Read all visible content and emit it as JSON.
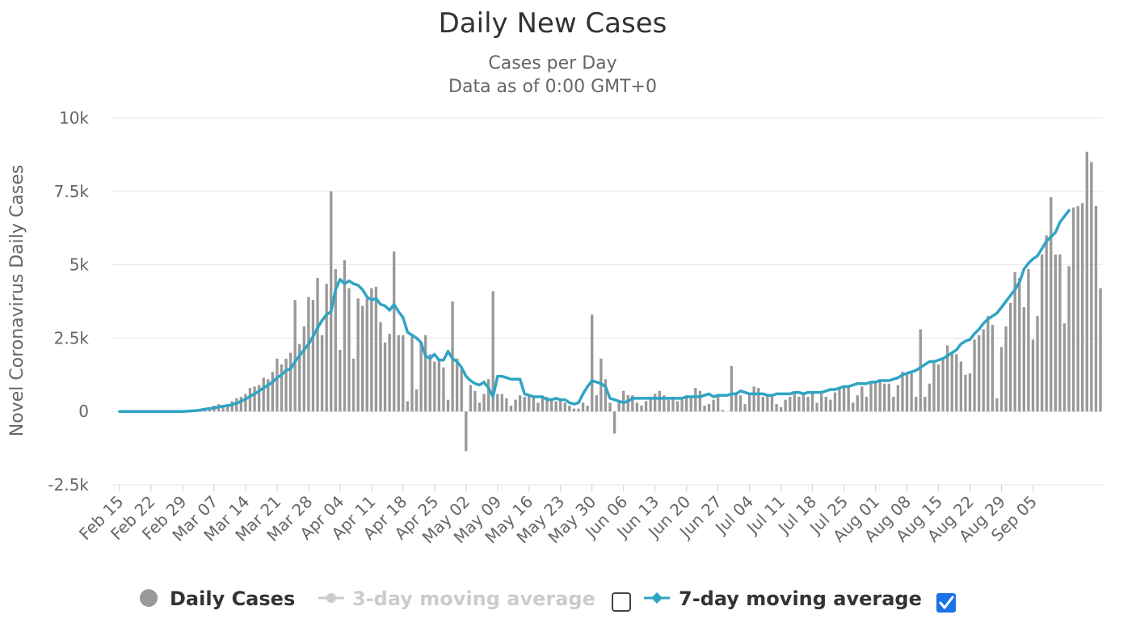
{
  "chart_data": {
    "type": "bar",
    "title": "Daily New Cases",
    "subtitle_lines": [
      "Cases per Day",
      "Data as of 0:00 GMT+0"
    ],
    "ylabel": "Novel Coronavirus Daily Cases",
    "xlabel": "",
    "ylim": [
      -2500,
      10000
    ],
    "y_ticks": [
      -2500,
      0,
      2500,
      5000,
      7500,
      10000
    ],
    "y_tick_labels": [
      "-2.5k",
      "0",
      "2.5k",
      "5k",
      "7.5k",
      "10k"
    ],
    "x_start_date": "2020-02-15",
    "x_ticks": [
      "2020-02-15",
      "2020-02-22",
      "2020-02-29",
      "2020-03-07",
      "2020-03-14",
      "2020-03-21",
      "2020-03-28",
      "2020-04-04",
      "2020-04-11",
      "2020-04-18",
      "2020-04-25",
      "2020-05-02",
      "2020-05-09",
      "2020-05-16",
      "2020-05-23",
      "2020-05-30",
      "2020-06-06",
      "2020-06-13",
      "2020-06-20",
      "2020-06-27",
      "2020-07-04",
      "2020-07-11",
      "2020-07-18",
      "2020-07-25",
      "2020-08-01",
      "2020-08-08",
      "2020-08-15",
      "2020-08-22",
      "2020-08-29",
      "2020-09-05"
    ],
    "x_tick_labels": [
      "Feb 15",
      "Feb 22",
      "Feb 29",
      "Mar 07",
      "Mar 14",
      "Mar 21",
      "Mar 28",
      "Apr 04",
      "Apr 11",
      "Apr 18",
      "Apr 25",
      "May 02",
      "May 09",
      "May 16",
      "May 23",
      "May 30",
      "Jun 06",
      "Jun 13",
      "Jun 20",
      "Jun 27",
      "Jul 04",
      "Jul 11",
      "Jul 18",
      "Jul 25",
      "Aug 01",
      "Aug 08",
      "Aug 15",
      "Aug 22",
      "Aug 29",
      "Sep 05"
    ],
    "grid": true,
    "legend_position": "bottom",
    "series": [
      {
        "name": "Daily Cases",
        "type": "bar",
        "color": "#999999",
        "values": [
          0,
          0,
          0,
          0,
          0,
          0,
          0,
          0,
          0,
          0,
          0,
          0,
          0,
          0,
          0,
          10,
          20,
          30,
          50,
          80,
          100,
          200,
          250,
          200,
          250,
          350,
          450,
          500,
          600,
          800,
          850,
          900,
          1150,
          1100,
          1350,
          1800,
          1600,
          1800,
          2000,
          3800,
          2300,
          2900,
          3900,
          3800,
          4550,
          2600,
          4350,
          7500,
          4850,
          2100,
          5150,
          4200,
          1800,
          3850,
          3600,
          3850,
          4200,
          4250,
          3050,
          2350,
          2650,
          5450,
          2600,
          2600,
          350,
          2550,
          750,
          2350,
          2600,
          1950,
          1700,
          1800,
          1500,
          400,
          3750,
          1800,
          1450,
          -1350,
          900,
          700,
          300,
          600,
          1100,
          4100,
          600,
          600,
          450,
          200,
          400,
          550,
          500,
          550,
          500,
          300,
          450,
          500,
          450,
          350,
          400,
          300,
          200,
          100,
          100,
          300,
          200,
          3300,
          550,
          1800,
          1100,
          300,
          -750,
          350,
          700,
          550,
          550,
          300,
          200,
          350,
          500,
          600,
          700,
          550,
          400,
          500,
          350,
          450,
          550,
          500,
          800,
          700,
          200,
          250,
          400,
          600,
          50,
          0,
          1550,
          600,
          550,
          250,
          600,
          850,
          800,
          500,
          600,
          550,
          250,
          150,
          400,
          500,
          650,
          500,
          600,
          500,
          650,
          300,
          600,
          500,
          400,
          650,
          800,
          800,
          850,
          300,
          550,
          850,
          500,
          1000,
          1050,
          1100,
          950,
          950,
          500,
          900,
          1350,
          1300,
          1300,
          500,
          2800,
          500,
          950,
          1650,
          1600,
          1800,
          2250,
          2000,
          1950,
          1700,
          1250,
          1300,
          2450,
          2600,
          2800,
          3250,
          2950,
          450,
          2200,
          2900,
          3700,
          4750,
          4550,
          3550,
          4850,
          2450,
          3250,
          5350,
          6000,
          7300,
          5350,
          5350,
          3000,
          4950,
          6950,
          7000,
          7100,
          8850,
          8500,
          7000,
          4200
        ]
      },
      {
        "name": "3-day moving average",
        "type": "line",
        "color": "#cccccc",
        "visible": false,
        "values": []
      },
      {
        "name": "7-day moving average",
        "type": "line",
        "color": "#2fa4c4",
        "visible": true,
        "values": [
          0,
          0,
          0,
          0,
          0,
          0,
          0,
          0,
          0,
          0,
          0,
          0,
          0,
          0,
          0,
          10,
          20,
          30,
          50,
          80,
          100,
          120,
          150,
          180,
          200,
          230,
          280,
          350,
          420,
          520,
          600,
          700,
          800,
          900,
          1000,
          1150,
          1250,
          1400,
          1450,
          1700,
          1900,
          2100,
          2300,
          2550,
          2850,
          3100,
          3300,
          3400,
          4150,
          4500,
          4350,
          4450,
          4350,
          4300,
          4150,
          3900,
          3800,
          3850,
          3650,
          3600,
          3450,
          3650,
          3400,
          3200,
          2700,
          2600,
          2500,
          2350,
          1900,
          1800,
          1950,
          1750,
          1750,
          2050,
          1800,
          1700,
          1500,
          1200,
          1050,
          950,
          900,
          1000,
          800,
          500,
          1200,
          1200,
          1150,
          1100,
          1100,
          1100,
          600,
          550,
          500,
          500,
          500,
          400,
          400,
          450,
          400,
          400,
          300,
          250,
          300,
          600,
          850,
          1050,
          1000,
          950,
          850,
          450,
          400,
          350,
          300,
          350,
          450,
          450,
          450,
          450,
          450,
          450,
          450,
          450,
          450,
          450,
          450,
          450,
          500,
          500,
          500,
          500,
          550,
          600,
          500,
          550,
          550,
          550,
          600,
          600,
          700,
          650,
          600,
          600,
          600,
          600,
          550,
          550,
          600,
          600,
          600,
          600,
          650,
          650,
          600,
          650,
          650,
          650,
          650,
          700,
          750,
          750,
          800,
          850,
          850,
          900,
          950,
          950,
          950,
          1000,
          1000,
          1050,
          1050,
          1050,
          1100,
          1150,
          1250,
          1300,
          1350,
          1400,
          1500,
          1600,
          1700,
          1700,
          1750,
          1800,
          1900,
          2000,
          2100,
          2300,
          2400,
          2450,
          2650,
          2800,
          3000,
          3150,
          3250,
          3350,
          3550,
          3750,
          3950,
          4150,
          4400,
          4850,
          5050,
          5200,
          5300,
          5550,
          5800,
          5950,
          6100,
          6450,
          6650,
          6850
        ]
      }
    ]
  },
  "legend": {
    "items": [
      {
        "label": "Daily Cases",
        "color": "#999999",
        "active": true
      },
      {
        "label": "3-day moving average",
        "color": "#cccccc",
        "active": false
      },
      {
        "label": "7-day moving average",
        "color": "#2fa4c4",
        "active": true
      }
    ]
  },
  "checkboxes": {
    "three_day_checked": false,
    "seven_day_checked": true,
    "check_color": "#1a73e8"
  }
}
